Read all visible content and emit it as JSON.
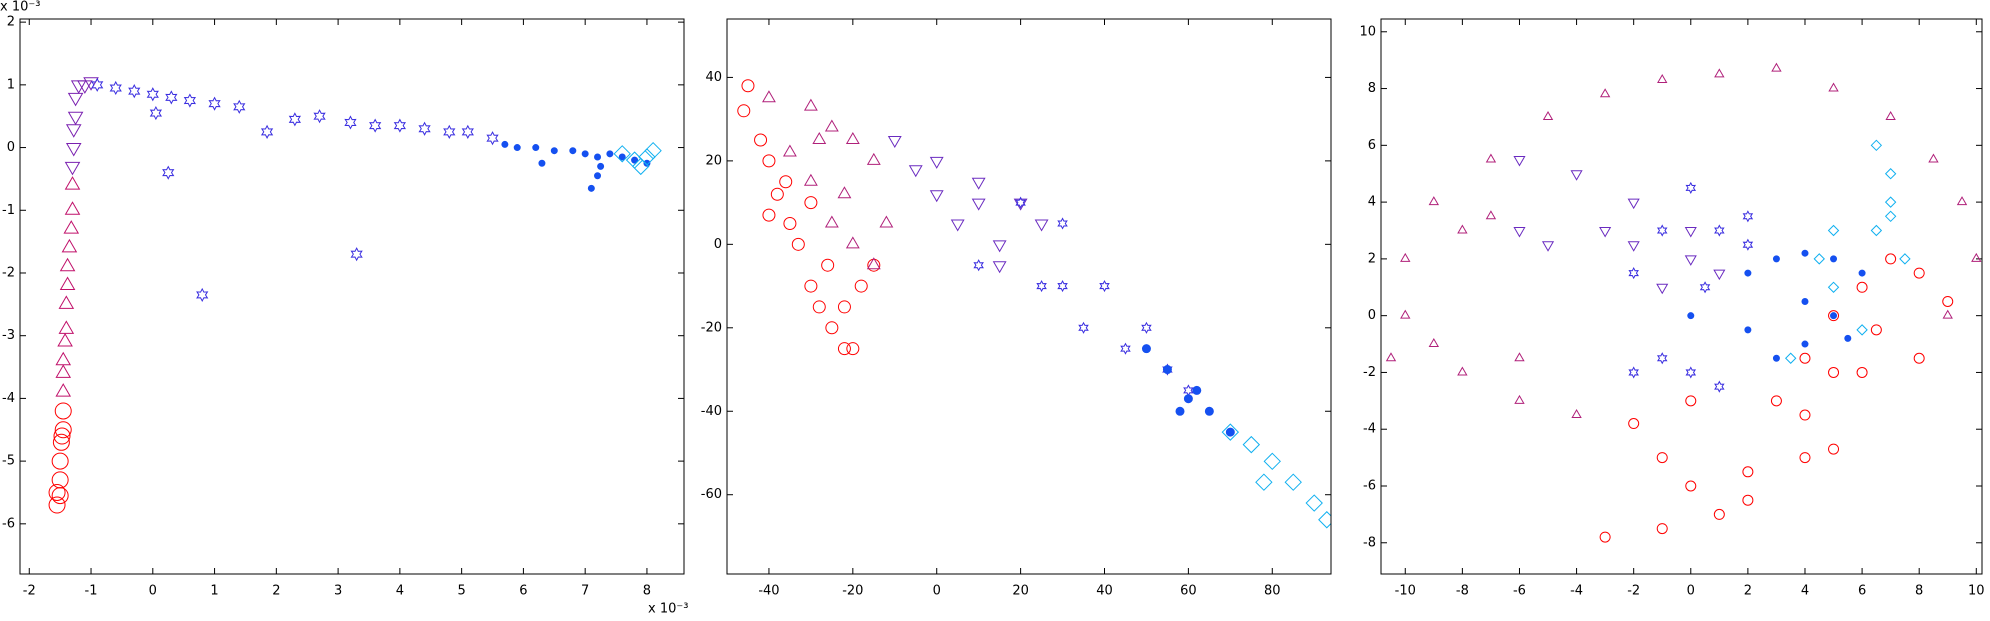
{
  "chart_data": [
    {
      "type": "scatter",
      "x_offset_label": "x 10⁻³",
      "y_offset_label": "x 10⁻³",
      "xlim": [
        -2.15,
        8.6
      ],
      "ylim": [
        -6.8,
        2.05
      ],
      "xticks": [
        -2,
        -1,
        0,
        1,
        2,
        3,
        4,
        5,
        6,
        7,
        8
      ],
      "yticks": [
        -6,
        -5,
        -4,
        -3,
        -2,
        -1,
        0,
        1,
        2
      ],
      "series": [
        {
          "color": "#ff0000",
          "marker": "circle",
          "size": 8,
          "x": [
            -1.55,
            -1.55,
            -1.5,
            -1.5,
            -1.48,
            -1.47,
            -1.45,
            -1.45,
            -1.5
          ],
          "y": [
            -5.7,
            -5.5,
            -5.3,
            -5.0,
            -4.7,
            -4.6,
            -4.5,
            -4.2,
            -5.55
          ]
        },
        {
          "color": "#c0106a",
          "marker": "triangle-up",
          "size": 8,
          "x": [
            -1.45,
            -1.45,
            -1.45,
            -1.42,
            -1.4,
            -1.4,
            -1.38,
            -1.38,
            -1.35,
            -1.32,
            -1.3,
            -1.3
          ],
          "y": [
            -3.9,
            -3.6,
            -3.4,
            -3.1,
            -2.9,
            -2.5,
            -2.2,
            -1.9,
            -1.6,
            -1.3,
            -1.0,
            -0.6
          ]
        },
        {
          "color": "#7a20b0",
          "marker": "triangle-down",
          "size": 8,
          "x": [
            -1.3,
            -1.28,
            -1.28,
            -1.25,
            -1.25,
            -1.2,
            -1.1,
            -1.0
          ],
          "y": [
            -0.3,
            0,
            0.3,
            0.5,
            0.8,
            1.0,
            1.0,
            1.05
          ]
        },
        {
          "color": "#3a2ee0",
          "marker": "star",
          "size": 6,
          "x": [
            -0.9,
            -0.6,
            -0.3,
            0,
            0.3,
            0.6,
            1.0,
            1.4,
            1.85,
            2.3,
            2.7,
            3.2,
            3.6,
            4.0,
            4.4,
            4.8,
            5.1,
            5.5,
            0.25,
            0.8,
            3.3,
            0.05
          ],
          "y": [
            1.0,
            0.95,
            0.9,
            0.85,
            0.8,
            0.75,
            0.7,
            0.65,
            0.25,
            0.45,
            0.5,
            0.4,
            0.35,
            0.35,
            0.3,
            0.25,
            0.25,
            0.15,
            -0.4,
            -2.35,
            -1.7,
            0.55
          ]
        },
        {
          "color": "#1550f0",
          "marker": "dot",
          "size": 3,
          "x": [
            5.7,
            5.9,
            6.2,
            6.5,
            6.8,
            7.0,
            7.2,
            7.4,
            7.6,
            7.8,
            8.0,
            7.1,
            7.2,
            7.25,
            6.3
          ],
          "y": [
            0.05,
            0.0,
            0.0,
            -0.05,
            -0.05,
            -0.1,
            -0.15,
            -0.1,
            -0.15,
            -0.2,
            -0.25,
            -0.65,
            -0.45,
            -0.3,
            -0.25
          ]
        },
        {
          "color": "#10b0f0",
          "marker": "diamond",
          "size": 8,
          "x": [
            7.6,
            7.8,
            8.0,
            8.1,
            7.9
          ],
          "y": [
            -0.1,
            -0.2,
            -0.15,
            -0.05,
            -0.3
          ]
        }
      ]
    },
    {
      "type": "scatter",
      "xlim": [
        -50,
        94
      ],
      "ylim": [
        -79,
        54
      ],
      "xticks": [
        -40,
        -20,
        0,
        20,
        40,
        60,
        80
      ],
      "yticks": [
        -60,
        -40,
        -20,
        0,
        20,
        40
      ],
      "series": [
        {
          "color": "#ff0000",
          "marker": "circle",
          "size": 6,
          "x": [
            -45,
            -46,
            -42,
            -40,
            -38,
            -35,
            -33,
            -30,
            -28,
            -25,
            -22,
            -20,
            -18,
            -15,
            -22,
            -30,
            -40,
            -36,
            -26
          ],
          "y": [
            38,
            32,
            25,
            20,
            12,
            5,
            0,
            -10,
            -15,
            -20,
            -25,
            -25,
            -10,
            -5,
            -15,
            10,
            7,
            15,
            -5
          ]
        },
        {
          "color": "#b0207a",
          "marker": "triangle-up",
          "size": 7,
          "x": [
            -40,
            -30,
            -25,
            -20,
            -35,
            -30,
            -25,
            -20,
            -15,
            -22,
            -15,
            -12,
            -28
          ],
          "y": [
            35,
            33,
            28,
            25,
            22,
            15,
            5,
            0,
            -5,
            12,
            20,
            5,
            25
          ]
        },
        {
          "color": "#6a2bc0",
          "marker": "triangle-down",
          "size": 7,
          "x": [
            -10,
            0,
            10,
            20,
            5,
            15,
            10,
            -5,
            15,
            0,
            25
          ],
          "y": [
            25,
            20,
            15,
            10,
            5,
            0,
            10,
            18,
            -5,
            12,
            5
          ]
        },
        {
          "color": "#3a2ee0",
          "marker": "star",
          "size": 5,
          "x": [
            20,
            30,
            40,
            50,
            55,
            25,
            35,
            45,
            10,
            30,
            60
          ],
          "y": [
            10,
            5,
            -10,
            -20,
            -30,
            -10,
            -20,
            -25,
            -5,
            -10,
            -35
          ]
        },
        {
          "color": "#1550f0",
          "marker": "dot",
          "size": 4,
          "x": [
            50,
            55,
            60,
            65,
            70,
            62,
            58
          ],
          "y": [
            -25,
            -30,
            -37,
            -40,
            -45,
            -35,
            -40
          ]
        },
        {
          "color": "#10b0f0",
          "marker": "diamond",
          "size": 8,
          "x": [
            70,
            75,
            80,
            85,
            90,
            78,
            93
          ],
          "y": [
            -45,
            -48,
            -52,
            -57,
            -62,
            -57,
            -66
          ]
        }
      ]
    },
    {
      "type": "scatter",
      "xlim": [
        -10.85,
        10.2
      ],
      "ylim": [
        -9.1,
        10.45
      ],
      "xticks": [
        -10,
        -8,
        -6,
        -4,
        -2,
        0,
        2,
        4,
        6,
        8,
        10
      ],
      "yticks": [
        -8,
        -6,
        -4,
        -2,
        0,
        2,
        4,
        6,
        8,
        10
      ],
      "series": [
        {
          "color": "#ff0000",
          "marker": "circle",
          "size": 5,
          "x": [
            -3,
            -1,
            0,
            2,
            4,
            5,
            3,
            4,
            5,
            6,
            7,
            8,
            9,
            8,
            6,
            4,
            0,
            -2,
            1,
            -1,
            2,
            5,
            6.5
          ],
          "y": [
            -7.8,
            -7.5,
            -6,
            -5.5,
            -5,
            -4.7,
            -3,
            -1.5,
            0,
            1,
            2,
            1.5,
            0.5,
            -1.5,
            -2,
            -3.5,
            -3,
            -3.8,
            -7,
            -5,
            -6.5,
            -2,
            -0.5
          ]
        },
        {
          "color": "#b0207a",
          "marker": "triangle-up",
          "size": 5,
          "x": [
            -10,
            -9,
            -8,
            -6,
            -4,
            -10.5,
            -10,
            -9,
            -7,
            -5,
            -3,
            -1,
            1,
            3,
            5,
            7,
            8.5,
            9.5,
            10,
            9,
            -6,
            -8,
            -7
          ],
          "y": [
            0,
            -1,
            -2,
            -3,
            -3.5,
            -1.5,
            2,
            4,
            5.5,
            7,
            7.8,
            8.3,
            8.5,
            8.7,
            8,
            7,
            5.5,
            4,
            2,
            0,
            -1.5,
            3,
            3.5
          ]
        },
        {
          "color": "#6a2bc0",
          "marker": "triangle-down",
          "size": 6,
          "x": [
            -6,
            -5,
            -3,
            -2,
            0,
            -4,
            -6,
            -1,
            0,
            1,
            -2
          ],
          "y": [
            3,
            2.5,
            3,
            2.5,
            3,
            5,
            5.5,
            1,
            2,
            1.5,
            4
          ]
        },
        {
          "color": "#3a2ee0",
          "marker": "star",
          "size": 5,
          "x": [
            -1,
            0,
            1,
            2,
            -2,
            0.5,
            2,
            -1,
            0,
            1,
            -2
          ],
          "y": [
            3,
            4.5,
            3,
            2.5,
            1.5,
            1,
            3.5,
            -1.5,
            -2,
            -2.5,
            -2
          ]
        },
        {
          "color": "#1550f0",
          "marker": "dot",
          "size": 3,
          "x": [
            2,
            3,
            4,
            5,
            6,
            4,
            5,
            3,
            4,
            5.5,
            2,
            0
          ],
          "y": [
            1.5,
            2,
            2.2,
            2,
            1.5,
            0.5,
            0,
            -1.5,
            -1,
            -0.8,
            -0.5,
            0
          ]
        },
        {
          "color": "#10b0f0",
          "marker": "diamond",
          "size": 5,
          "x": [
            6.5,
            7,
            7,
            6.5,
            7.5,
            4.5,
            5,
            6,
            3.5,
            7,
            5
          ],
          "y": [
            6,
            5,
            4,
            3,
            2,
            2,
            1,
            -0.5,
            -1.5,
            3.5,
            3
          ]
        }
      ]
    }
  ]
}
